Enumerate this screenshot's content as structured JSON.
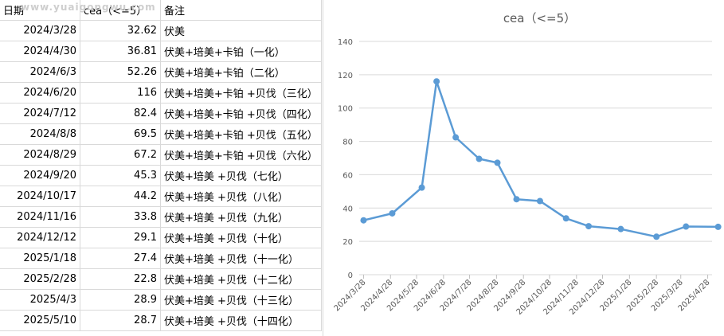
{
  "sheet": {
    "headers": [
      "日期",
      "cea（<=5）",
      "备注"
    ],
    "rows": [
      {
        "date": "2024/3/28",
        "cea": "32.62",
        "note": "伏美"
      },
      {
        "date": "2024/4/30",
        "cea": "36.81",
        "note": "伏美+培美+卡铂（一化）"
      },
      {
        "date": "2024/6/3",
        "cea": "52.26",
        "note": "伏美+培美+卡铂（二化）"
      },
      {
        "date": "2024/6/20",
        "cea": "116",
        "note": "伏美+培美+卡铂 +贝伐（三化）"
      },
      {
        "date": "2024/7/12",
        "cea": "82.4",
        "note": "伏美+培美+卡铂 +贝伐（四化）"
      },
      {
        "date": "2024/8/8",
        "cea": "69.5",
        "note": "伏美+培美+卡铂 +贝伐（五化）"
      },
      {
        "date": "2024/8/29",
        "cea": "67.2",
        "note": "伏美+培美+卡铂 +贝伐（六化）"
      },
      {
        "date": "2024/9/20",
        "cea": "45.3",
        "note": "伏美+培美 +贝伐（七化）"
      },
      {
        "date": "2024/10/17",
        "cea": "44.2",
        "note": "伏美+培美 +贝伐（八化）"
      },
      {
        "date": "2024/11/16",
        "cea": "33.8",
        "note": "伏美+培美 +贝伐（九化）"
      },
      {
        "date": "2024/12/12",
        "cea": "29.1",
        "note": "伏美+培美 +贝伐（十化）"
      },
      {
        "date": "2025/1/18",
        "cea": "27.4",
        "note": "伏美+培美 +贝伐（十一化）"
      },
      {
        "date": "2025/2/28",
        "cea": "22.8",
        "note": "伏美+培美 +贝伐（十二化）"
      },
      {
        "date": "2025/4/3",
        "cea": "28.9",
        "note": "伏美+培美 +贝伐（十三化）"
      },
      {
        "date": "2025/5/10",
        "cea": "28.7",
        "note": "伏美+培美 +贝伐（十四化）"
      }
    ]
  },
  "watermark": "www.yuaigongwu.com",
  "chart_data": {
    "type": "line",
    "title": "cea（<=5）",
    "x": [
      "2024/3/28",
      "2024/4/30",
      "2024/6/3",
      "2024/6/20",
      "2024/7/12",
      "2024/8/8",
      "2024/8/29",
      "2024/9/20",
      "2024/10/17",
      "2024/11/16",
      "2024/12/12",
      "2025/1/18",
      "2025/2/28",
      "2025/4/3",
      "2025/5/10"
    ],
    "values": [
      32.62,
      36.81,
      52.26,
      116,
      82.4,
      69.5,
      67.2,
      45.3,
      44.2,
      33.8,
      29.1,
      27.4,
      22.8,
      28.9,
      28.7
    ],
    "x_axis": "date",
    "x_tick_labels": [
      "2024/3/28",
      "2024/4/28",
      "2024/5/28",
      "2024/6/28",
      "2024/7/28",
      "2024/8/28",
      "2024/9/28",
      "2024/10/28",
      "2024/11/28",
      "2024/12/28",
      "2025/1/28",
      "2025/2/28",
      "2025/3/28",
      "2025/4/28"
    ],
    "ylim": [
      0,
      140
    ],
    "y_ticks": [
      0,
      20,
      40,
      60,
      80,
      100,
      120,
      140
    ],
    "grid": "horizontal",
    "legend": "none",
    "line_color": "#5b9bd5",
    "grid_color": "#d9d9d9",
    "axis_text_color": "#595959"
  }
}
